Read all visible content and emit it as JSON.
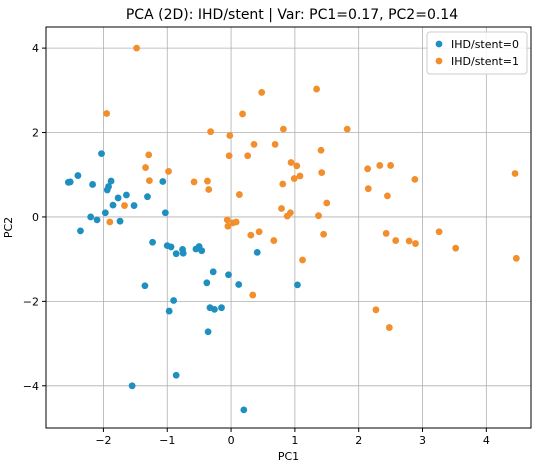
{
  "chart_data": {
    "type": "scatter",
    "title": "PCA (2D): IHD/stent  |  Var: PC1=0.17, PC2=0.14",
    "xlabel": "PC1",
    "ylabel": "PC2",
    "xlim": [
      -2.9,
      4.7
    ],
    "ylim": [
      -5.0,
      4.5
    ],
    "xticks": [
      -2,
      -1,
      0,
      1,
      2,
      3,
      4
    ],
    "yticks": [
      -4,
      -2,
      0,
      2,
      4
    ],
    "grid": true,
    "legend_position": "top-right",
    "series": [
      {
        "name": "IHD/stent=0",
        "color": "#1f8fbf",
        "points": [
          [
            -2.55,
            0.82
          ],
          [
            -2.52,
            0.83
          ],
          [
            -2.4,
            0.98
          ],
          [
            -2.36,
            -0.33
          ],
          [
            -2.2,
            0.0
          ],
          [
            -2.17,
            0.77
          ],
          [
            -2.1,
            -0.07
          ],
          [
            -2.03,
            1.5
          ],
          [
            -1.97,
            0.1
          ],
          [
            -1.94,
            0.64
          ],
          [
            -1.92,
            0.72
          ],
          [
            -1.88,
            0.85
          ],
          [
            -1.85,
            0.28
          ],
          [
            -1.77,
            0.45
          ],
          [
            -1.74,
            -0.1
          ],
          [
            -1.64,
            0.52
          ],
          [
            -1.52,
            0.27
          ],
          [
            -1.55,
            -4.0
          ],
          [
            -1.35,
            -1.63
          ],
          [
            -1.31,
            0.48
          ],
          [
            -1.23,
            -0.6
          ],
          [
            -1.07,
            0.84
          ],
          [
            -1.03,
            0.1
          ],
          [
            -1.0,
            -0.68
          ],
          [
            -0.94,
            -0.71
          ],
          [
            -0.97,
            -2.23
          ],
          [
            -0.9,
            -1.98
          ],
          [
            -0.86,
            -3.75
          ],
          [
            -0.86,
            -0.87
          ],
          [
            -0.76,
            -0.77
          ],
          [
            -0.75,
            -0.86
          ],
          [
            -0.55,
            -0.76
          ],
          [
            -0.5,
            -0.7
          ],
          [
            -0.46,
            -0.8
          ],
          [
            -0.38,
            -1.56
          ],
          [
            -0.36,
            -2.72
          ],
          [
            -0.33,
            -2.15
          ],
          [
            -0.28,
            -1.3
          ],
          [
            -0.26,
            -2.19
          ],
          [
            -0.15,
            -2.15
          ],
          [
            -0.04,
            -1.37
          ],
          [
            0.12,
            -1.6
          ],
          [
            0.2,
            -4.57
          ],
          [
            0.41,
            -0.84
          ],
          [
            1.04,
            -1.61
          ]
        ]
      },
      {
        "name": "IHD/stent=1",
        "color": "#f28e2b",
        "points": [
          [
            -1.48,
            4.0
          ],
          [
            -1.95,
            2.45
          ],
          [
            -1.9,
            -0.12
          ],
          [
            -1.67,
            0.27
          ],
          [
            -1.34,
            1.17
          ],
          [
            -1.29,
            1.47
          ],
          [
            -1.28,
            0.86
          ],
          [
            -0.98,
            1.08
          ],
          [
            -0.58,
            0.83
          ],
          [
            -0.37,
            0.85
          ],
          [
            -0.35,
            0.65
          ],
          [
            -0.32,
            2.02
          ],
          [
            -0.06,
            -0.07
          ],
          [
            -0.05,
            -0.22
          ],
          [
            -0.03,
            1.45
          ],
          [
            -0.02,
            1.93
          ],
          [
            0.03,
            -0.14
          ],
          [
            0.08,
            -0.12
          ],
          [
            0.13,
            0.53
          ],
          [
            0.18,
            2.44
          ],
          [
            0.26,
            1.45
          ],
          [
            0.31,
            -0.43
          ],
          [
            0.34,
            -1.85
          ],
          [
            0.36,
            1.72
          ],
          [
            0.44,
            -0.35
          ],
          [
            0.48,
            2.95
          ],
          [
            0.67,
            -0.56
          ],
          [
            0.69,
            1.72
          ],
          [
            0.79,
            0.2
          ],
          [
            0.81,
            0.78
          ],
          [
            0.82,
            2.08
          ],
          [
            0.88,
            0.02
          ],
          [
            0.93,
            0.1
          ],
          [
            0.94,
            1.29
          ],
          [
            0.99,
            0.91
          ],
          [
            1.03,
            1.21
          ],
          [
            1.08,
            0.97
          ],
          [
            1.12,
            -1.02
          ],
          [
            1.34,
            3.03
          ],
          [
            1.37,
            0.03
          ],
          [
            1.41,
            1.58
          ],
          [
            1.42,
            1.05
          ],
          [
            1.45,
            -0.41
          ],
          [
            1.5,
            0.33
          ],
          [
            1.82,
            2.08
          ],
          [
            2.14,
            1.14
          ],
          [
            2.15,
            0.67
          ],
          [
            2.27,
            -2.2
          ],
          [
            2.33,
            1.22
          ],
          [
            2.43,
            -0.39
          ],
          [
            2.45,
            0.5
          ],
          [
            2.48,
            -2.62
          ],
          [
            2.5,
            1.22
          ],
          [
            2.58,
            -0.56
          ],
          [
            2.79,
            -0.57
          ],
          [
            2.88,
            0.89
          ],
          [
            2.89,
            -0.63
          ],
          [
            3.26,
            -0.35
          ],
          [
            3.52,
            -0.74
          ],
          [
            4.45,
            1.03
          ],
          [
            4.47,
            -0.98
          ]
        ]
      }
    ]
  }
}
